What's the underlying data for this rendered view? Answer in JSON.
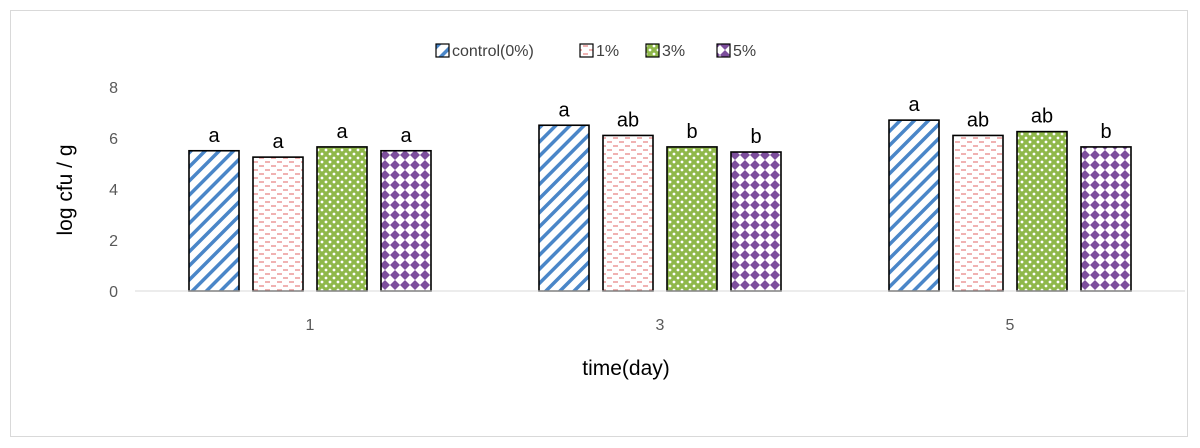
{
  "chart_data": {
    "type": "bar",
    "title": "",
    "xlabel": "time(day)",
    "ylabel": "log cfu / g",
    "ylim": [
      0,
      8
    ],
    "yticks": [
      "0",
      "2",
      "4",
      "6",
      "8"
    ],
    "categories": [
      "1",
      "3",
      "5"
    ],
    "grid": false,
    "legend_position": "top",
    "series": [
      {
        "name": "control(0%)",
        "values": [
          5.5,
          6.5,
          6.7
        ],
        "labels": [
          "a",
          "a",
          "a"
        ],
        "color": "#4a86c8",
        "pattern": "diagonal-stripes"
      },
      {
        "name": "1%",
        "values": [
          5.25,
          6.1,
          6.1
        ],
        "labels": [
          "a",
          "ab",
          "ab"
        ],
        "color": "#e06666",
        "pattern": "dashes"
      },
      {
        "name": "3%",
        "values": [
          5.65,
          5.65,
          6.25
        ],
        "labels": [
          "a",
          "b",
          "ab"
        ],
        "color": "#8fb84a",
        "pattern": "dots"
      },
      {
        "name": "5%",
        "values": [
          5.5,
          5.45,
          5.65
        ],
        "labels": [
          "a",
          "b",
          "b"
        ],
        "color": "#7c4e9c",
        "pattern": "diamonds"
      }
    ]
  }
}
